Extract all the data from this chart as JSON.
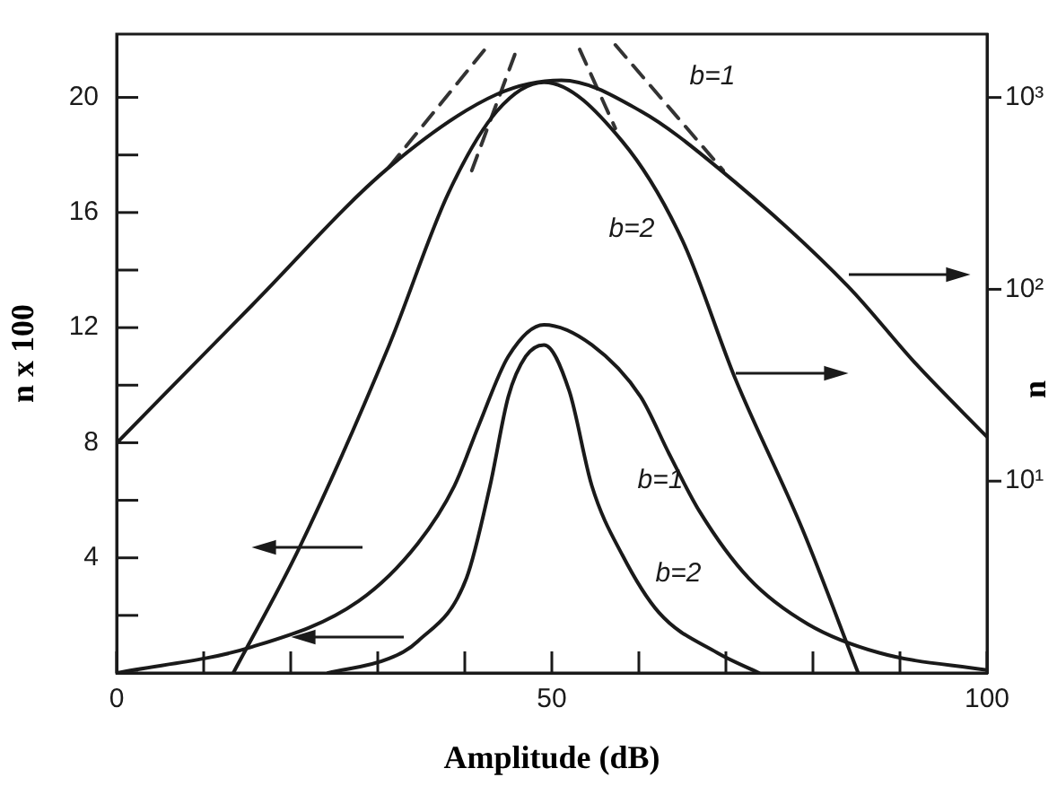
{
  "chart_data": {
    "type": "line",
    "xlabel": "Amplitude (dB)",
    "ylabel": "n x 100",
    "y2label": "n",
    "xlim": [
      0,
      100
    ],
    "xticks": [
      0,
      {
        "value": 10,
        "label": null
      },
      {
        "value": 20,
        "label": null
      },
      {
        "value": 30,
        "label": null
      },
      {
        "value": 40,
        "label": null
      },
      50,
      {
        "value": 60,
        "label": null
      },
      {
        "value": 70,
        "label": null
      },
      {
        "value": 80,
        "label": null
      },
      {
        "value": 90,
        "label": null
      },
      100
    ],
    "ylim": [
      0,
      22.2
    ],
    "yticks": [
      {
        "value": 0,
        "label": null
      },
      {
        "value": 2,
        "label": null
      },
      4,
      {
        "value": 6,
        "label": null
      },
      8,
      {
        "value": 10,
        "label": null
      },
      12,
      {
        "value": 14,
        "label": null
      },
      16,
      {
        "value": 18,
        "label": null
      },
      20
    ],
    "y2lim": [
      1,
      2140
    ],
    "y2ticks": [
      {
        "value": 10,
        "label": "10¹"
      },
      {
        "value": 100,
        "label": "10²"
      },
      {
        "value": 1000,
        "label": "10³"
      }
    ],
    "log": "y2",
    "grid": false,
    "legend": false,
    "marker": "none",
    "line_style": "solid",
    "series": [
      {
        "color": "#1a1a1a",
        "axis": "y2",
        "x": [
          0,
          15.6,
          31.3,
          43.7,
          51.1,
          60.2,
          69,
          84,
          91.8,
          100
        ],
        "values": [
          15.8,
          83,
          433,
          1040,
          1230,
          850,
          433,
          104,
          41,
          17
        ]
      },
      {
        "color": "#1a1a1a",
        "axis": "y2",
        "x": [
          13.4,
          21,
          31.3,
          38.1,
          43.7,
          49.1,
          58.1,
          65,
          71.1,
          78.8,
          85.2
        ],
        "values": [
          1,
          4.5,
          51,
          316,
          850,
          1200,
          590,
          180,
          34,
          5.6,
          1
        ]
      },
      {
        "color": "#1a1a1a",
        "axis": "y",
        "x": [
          0,
          15.5,
          27.8,
          34.6,
          38.8,
          41.6,
          45,
          49.1,
          54.6,
          60.2,
          63.5,
          67,
          72.6,
          79.4,
          87.6,
          100
        ],
        "values": [
          0,
          0.9,
          2.5,
          4.5,
          6.5,
          8.6,
          11,
          12.1,
          11.4,
          9.6,
          7.6,
          5.6,
          3.3,
          1.7,
          0.7,
          0.1
        ]
      },
      {
        "color": "#1a1a1a",
        "axis": "y",
        "x": [
          24.3,
          31.3,
          34.6,
          40.2,
          42.9,
          45,
          47,
          49.1,
          52,
          54.6,
          58.1,
          62.3,
          69,
          73.8
        ],
        "values": [
          0,
          0.5,
          1.1,
          3.3,
          6.5,
          9.6,
          11,
          11.4,
          9.8,
          6.5,
          4.1,
          2.1,
          0.7,
          0
        ]
      },
      {
        "color": "#333333",
        "axis": "y2",
        "line_style": "dashed",
        "x": [
          31.3,
          42.3
        ],
        "values": [
          433,
          1780
        ]
      },
      {
        "color": "#333333",
        "axis": "y2",
        "line_style": "dashed",
        "x": [
          40.8,
          45.8
        ],
        "values": [
          416,
          1700
        ]
      },
      {
        "color": "#333333",
        "axis": "y2",
        "line_style": "dashed",
        "x": [
          53.2,
          57.3
        ],
        "values": [
          1780,
          690
        ]
      },
      {
        "color": "#333333",
        "axis": "y2",
        "line_style": "dashed",
        "x": [
          57.3,
          69.7
        ],
        "values": [
          1880,
          416
        ]
      }
    ],
    "annotations": [
      "b=1",
      "b=2",
      "b=1",
      "b=2"
    ]
  }
}
